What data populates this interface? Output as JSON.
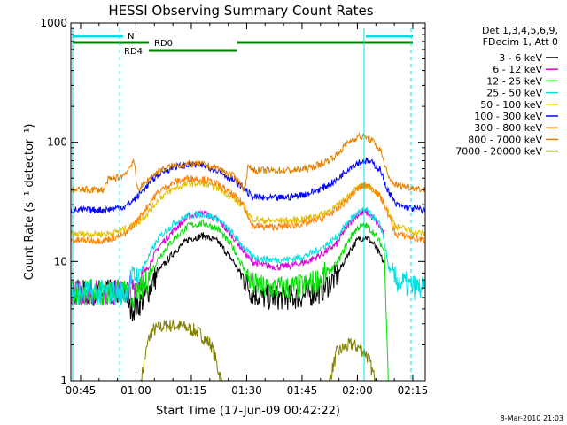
{
  "chart_data": {
    "type": "line",
    "title": "HESSI Observing Summary Count Rates",
    "xlabel": "Start Time (17-Jun-09 00:42:22)",
    "ylabel": "Count Rate (s⁻¹ detector⁻¹)",
    "yscale": "log",
    "ylim": [
      1,
      1000
    ],
    "xlim_minutes": [
      0,
      96
    ],
    "x_ticks": [
      {
        "minute": 2.63,
        "label": "00:45"
      },
      {
        "minute": 17.63,
        "label": "01:00"
      },
      {
        "minute": 32.63,
        "label": "01:15"
      },
      {
        "minute": 47.63,
        "label": "01:30"
      },
      {
        "minute": 62.63,
        "label": "01:45"
      },
      {
        "minute": 77.63,
        "label": "02:00"
      },
      {
        "minute": 92.63,
        "label": "02:15"
      }
    ],
    "y_ticks": [
      {
        "value": 1,
        "label": "1"
      },
      {
        "value": 10,
        "label": "10"
      },
      {
        "value": 100,
        "label": "100"
      },
      {
        "value": 1000,
        "label": "1000"
      }
    ],
    "legend": {
      "header": [
        "Det 1,3,4,5,6,9,",
        "FDecim 1, Att 0"
      ],
      "placement": "right"
    },
    "footer_date": "8-Mar-2010 21:03",
    "series": [
      {
        "name": "3 - 6 keV",
        "color": "#000000",
        "x": [
          0,
          9,
          12,
          15,
          16,
          18,
          20,
          22,
          24,
          28,
          32,
          36,
          40,
          44,
          47,
          49,
          52,
          56,
          60,
          64,
          68,
          72,
          74,
          76,
          78,
          80,
          82,
          84,
          85
        ],
        "y": [
          5.5,
          5.5,
          5.5,
          5.5,
          4,
          4.2,
          5,
          6.5,
          8.5,
          12,
          15.5,
          16.5,
          14.5,
          10,
          7,
          5.5,
          5,
          5,
          5,
          5.2,
          5.8,
          7.5,
          10,
          13,
          15.5,
          16,
          14,
          11,
          9.5
        ]
      },
      {
        "name": "6 - 12 keV",
        "color": "#e000e0",
        "x": [
          0,
          9,
          12,
          15,
          16,
          18,
          20,
          22,
          24,
          28,
          32,
          36,
          40,
          44,
          47,
          49,
          52,
          56,
          60,
          64,
          68,
          72,
          74,
          76,
          78,
          80,
          82,
          84,
          85
        ],
        "y": [
          5.5,
          5.5,
          5.5,
          5.5,
          6,
          6.5,
          8,
          10.5,
          13.5,
          18.5,
          24,
          25.5,
          22,
          16,
          12,
          10,
          9.3,
          9,
          9.3,
          10,
          11.5,
          14,
          18,
          22,
          25,
          26,
          23,
          19,
          17
        ]
      },
      {
        "name": "12 - 25 keV",
        "color": "#00e000",
        "x": [
          0,
          9,
          12,
          15,
          16,
          18,
          20,
          22,
          24,
          28,
          32,
          36,
          40,
          44,
          47,
          49,
          52,
          56,
          60,
          64,
          68,
          72,
          74,
          76,
          78,
          80,
          82,
          84,
          85,
          86
        ],
        "y": [
          5.5,
          5.5,
          5.5,
          5.5,
          5,
          5.3,
          6.3,
          8.5,
          11,
          15.5,
          20,
          21,
          18.5,
          13,
          8.5,
          6.5,
          6,
          6,
          6,
          6.3,
          7.3,
          9.5,
          12.5,
          16.5,
          19.5,
          20,
          17.5,
          14,
          12,
          1
        ]
      },
      {
        "name": "25 - 50 keV",
        "color": "#00e0e0",
        "x": [
          0,
          9,
          12,
          15,
          16,
          18,
          20,
          22,
          24,
          28,
          32,
          36,
          40,
          44,
          47,
          49,
          52,
          56,
          60,
          64,
          68,
          72,
          74,
          76,
          78,
          80,
          82,
          84,
          85,
          86,
          88,
          92,
          96
        ],
        "y": [
          5.5,
          5.5,
          5.5,
          5.5,
          7,
          7.8,
          9.5,
          12.5,
          16,
          21,
          24.5,
          25,
          22.5,
          17,
          13,
          11,
          10.5,
          10.3,
          10.5,
          11.3,
          13,
          16,
          19.5,
          23,
          26,
          27,
          23.5,
          19.5,
          14.5,
          9,
          7,
          6.2,
          5.8
        ]
      },
      {
        "name": "50 - 100 keV",
        "color": "#e0c000",
        "x": [
          0,
          9,
          12,
          15,
          16,
          18,
          20,
          22,
          24,
          28,
          32,
          36,
          40,
          44,
          47,
          49,
          52,
          56,
          60,
          64,
          68,
          72,
          74,
          76,
          78,
          80,
          82,
          84,
          85,
          88,
          92,
          96
        ],
        "y": [
          17,
          17,
          17.5,
          19,
          19.5,
          21,
          24,
          28,
          34,
          41,
          45,
          45,
          41,
          34,
          28,
          23,
          22,
          22,
          22,
          23,
          25,
          29,
          33,
          38,
          42,
          43,
          40,
          34,
          30,
          20,
          18,
          17
        ]
      },
      {
        "name": "100 - 300 keV",
        "color": "#0000ff",
        "x": [
          0,
          9,
          12,
          15,
          16,
          18,
          20,
          22,
          24,
          28,
          32,
          36,
          40,
          44,
          47,
          49,
          52,
          56,
          60,
          64,
          68,
          72,
          74,
          76,
          78,
          80,
          82,
          84,
          85,
          88,
          92,
          96
        ],
        "y": [
          27,
          27,
          28,
          29,
          31,
          35,
          41,
          48,
          55,
          62,
          65,
          64,
          58,
          48,
          41,
          35,
          34,
          34,
          35,
          37,
          41,
          48,
          56,
          63,
          68,
          70,
          66,
          58,
          45,
          30,
          28,
          27
        ]
      },
      {
        "name": "300 - 800 keV",
        "color": "#ff8000",
        "x": [
          0,
          9,
          12,
          15,
          16,
          18,
          20,
          22,
          24,
          28,
          32,
          36,
          40,
          44,
          47,
          49,
          52,
          56,
          60,
          64,
          68,
          72,
          74,
          76,
          78,
          80,
          82,
          84,
          85,
          88,
          92,
          96
        ],
        "y": [
          15,
          15,
          16,
          17,
          19,
          22,
          27,
          33,
          39,
          46,
          50,
          49,
          44,
          36,
          30,
          20,
          19.5,
          19.5,
          20,
          21,
          23,
          27,
          31,
          36,
          41,
          44,
          41,
          34,
          30,
          17,
          16,
          15
        ]
      },
      {
        "name": "800 - 7000 keV",
        "color": "#e08000",
        "x": [
          0,
          9,
          10,
          14,
          16,
          17,
          18,
          20,
          22,
          24,
          28,
          32,
          36,
          40,
          44,
          46,
          47,
          48,
          50,
          56,
          60,
          64,
          68,
          72,
          74,
          76,
          78,
          80,
          82,
          84,
          86,
          88,
          92,
          96
        ],
        "y": [
          40,
          40,
          48,
          52,
          62,
          72,
          40,
          45,
          52,
          58,
          64,
          66,
          65,
          60,
          52,
          45,
          40,
          62,
          58,
          58,
          58,
          60,
          66,
          78,
          92,
          104,
          112,
          110,
          100,
          84,
          50,
          44,
          42,
          40
        ]
      },
      {
        "name": "7000 - 20000 keV",
        "color": "#808000",
        "x": [
          0,
          19,
          20,
          21,
          22,
          24,
          26,
          28,
          31,
          34,
          36,
          38,
          39,
          40,
          41,
          70,
          71,
          72,
          74,
          76,
          78,
          80,
          81,
          82,
          83,
          96
        ],
        "y": [
          1,
          1,
          1.5,
          2.2,
          2.6,
          2.8,
          2.9,
          2.9,
          2.8,
          2.6,
          2.3,
          2,
          1.6,
          1.2,
          1,
          1,
          1.3,
          1.7,
          1.9,
          2.0,
          1.9,
          1.7,
          1.4,
          1.1,
          1,
          1
        ]
      }
    ],
    "annotations": {
      "flag_labels": [
        "N",
        "RD0",
        "RD4"
      ],
      "flag_colors": {
        "night": "#00e0e0",
        "data": "#008000"
      }
    }
  }
}
